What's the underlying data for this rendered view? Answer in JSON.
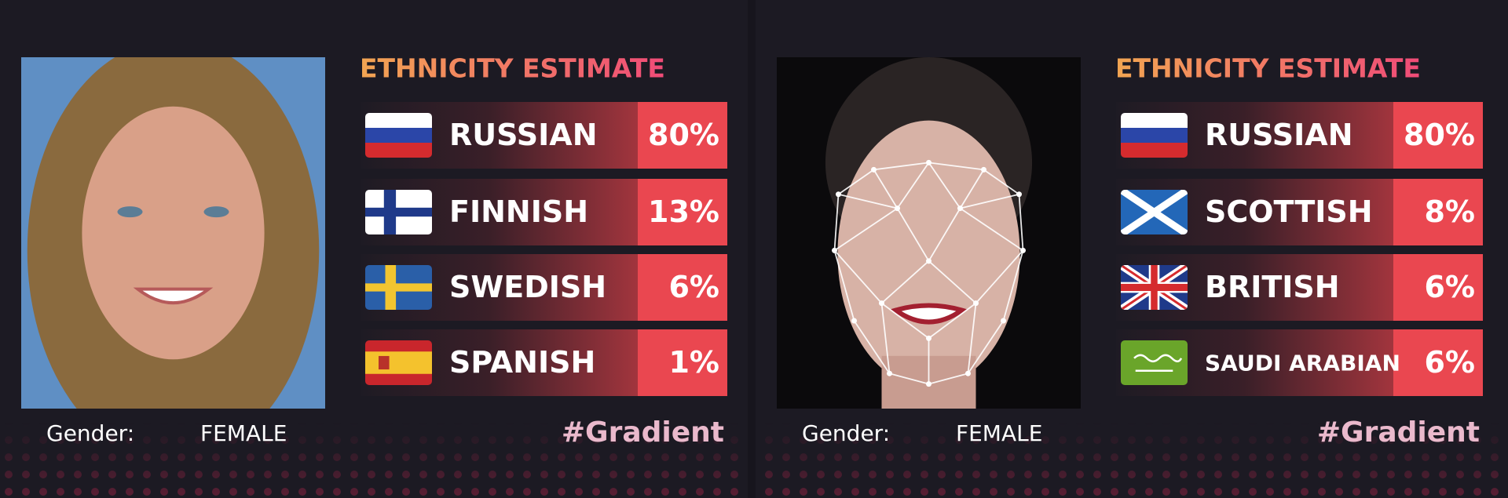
{
  "panels": [
    {
      "title": "ETHNICITY ESTIMATE",
      "rows": [
        {
          "label": "RUSSIAN",
          "percent": "80%"
        },
        {
          "label": "FINNISH",
          "percent": "13%"
        },
        {
          "label": "SWEDISH",
          "percent": "6%"
        },
        {
          "label": "SPANISH",
          "percent": "1%"
        }
      ],
      "gender_label": "Gender:",
      "gender_value": "FEMALE",
      "hashtag": "#Gradient"
    },
    {
      "title": "ETHNICITY ESTIMATE",
      "rows": [
        {
          "label": "RUSSIAN",
          "percent": "80%"
        },
        {
          "label": "SCOTTISH",
          "percent": "8%"
        },
        {
          "label": "BRITISH",
          "percent": "6%"
        },
        {
          "label": "SAUDI ARABIAN",
          "percent": "6%"
        }
      ],
      "gender_label": "Gender:",
      "gender_value": "FEMALE",
      "hashtag": "#Gradient"
    }
  ]
}
